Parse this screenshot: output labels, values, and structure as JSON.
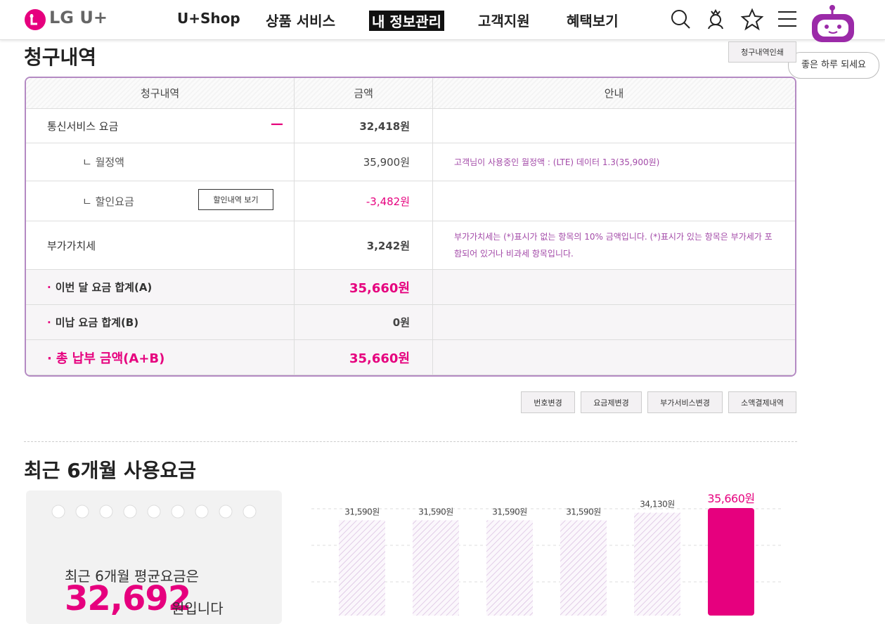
{
  "header": {
    "logo": "LG U+",
    "nav": [
      "U+Shop",
      "상품 서비스",
      "내 정보관리",
      "고객지원",
      "혜택보기"
    ],
    "chatbot_bubble": "좋은 하루 되세요"
  },
  "bill": {
    "title": "청구내역",
    "print_button": "청구내역인쇄",
    "table": {
      "headers": [
        "청구내역",
        "금액",
        "안내"
      ],
      "rows": [
        {
          "item": "통신서비스 요금",
          "amount": "32,418원"
        },
        {
          "item": "ㄴ 월정액",
          "amount": "35,900원",
          "note": "고객님이 사용중인 월정액 : (LTE) 데이터 1.3(35,900원)"
        },
        {
          "item": "ㄴ 할인요금",
          "button": "할인내역 보기",
          "amount": "-3,482원"
        },
        {
          "item": "부가가치세",
          "amount": "3,242원",
          "note": "부가가치세는 (*)표시가 없는 항목의 10% 금액입니다. (*)표시가 있는 항목은 부가세가 포함되어 있거나 비과세 항목입니다."
        },
        {
          "item": "이번 달 요금 합계(A)",
          "amount": "35,660원"
        },
        {
          "item": "미납 요금 합계(B)",
          "amount": "0원"
        },
        {
          "item": "총 납부 금액(A+B)",
          "amount": "35,660원"
        }
      ]
    },
    "actions": [
      "번호변경",
      "요금제변경",
      "부가서비스변경",
      "소액결제내역"
    ]
  },
  "usage": {
    "title": "최근 6개월 사용요금",
    "average_intro": "최근 6개월 평균요금은",
    "average_value": "32,692",
    "average_suffix": "원입니다",
    "chart_data": {
      "type": "bar",
      "values": [
        31590,
        31590,
        31590,
        31590,
        34130,
        35660
      ],
      "value_labels": [
        "31,590원",
        "31,590원",
        "31,590원",
        "31,590원",
        "34,130원",
        "35,660원"
      ]
    }
  }
}
